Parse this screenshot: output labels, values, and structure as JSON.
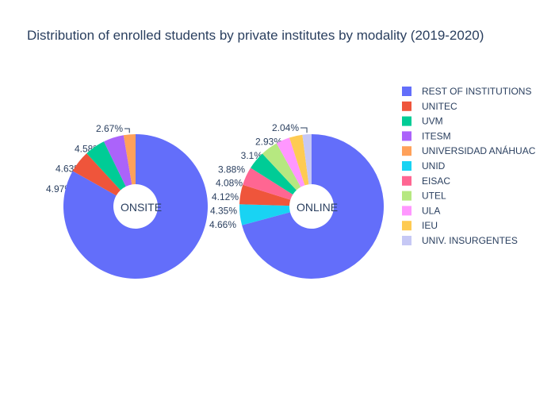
{
  "chart_data": {
    "type": "pie",
    "title": "Distribution of enrolled students by private institutes by modality (2019-2020)",
    "categories": [
      "REST OF INSTITUTIONS",
      "UNITEC",
      "UVM",
      "ITESM",
      "UNIVERSIDAD ANÁHUAC",
      "UNID",
      "EISAC",
      "UTEL",
      "ULA",
      "IEU",
      "UNIV. INSURGENTES"
    ],
    "colors": [
      "#636efa",
      "#EF553B",
      "#00cc96",
      "#ab63fa",
      "#FFA15A",
      "#19d3f3",
      "#FF6692",
      "#B6E880",
      "#FF97FF",
      "#FECB52",
      "#c6c8f5"
    ],
    "series": [
      {
        "name": "ONSITE",
        "slices": [
          {
            "label": "REST OF INSTITUTIONS",
            "value": 83.2,
            "text": "83.2%"
          },
          {
            "label": "UNITEC",
            "value": 4.97,
            "text": "4.97%"
          },
          {
            "label": "UVM",
            "value": 4.63,
            "text": "4.63%"
          },
          {
            "label": "ITESM",
            "value": 4.58,
            "text": "4.58%"
          },
          {
            "label": "UNIVERSIDAD ANÁHUAC",
            "value": 2.67,
            "text": "2.67%"
          }
        ]
      },
      {
        "name": "ONLINE",
        "slices": [
          {
            "label": "REST OF INSTITUTIONS",
            "value": 70.8,
            "text": "70.8%"
          },
          {
            "label": "UNID",
            "value": 4.66,
            "text": "4.66%"
          },
          {
            "label": "UNITEC",
            "value": 4.35,
            "text": "4.35%"
          },
          {
            "label": "EISAC",
            "value": 4.12,
            "text": "4.12%"
          },
          {
            "label": "UVM",
            "value": 4.08,
            "text": "4.08%"
          },
          {
            "label": "UTEL",
            "value": 3.88,
            "text": "3.88%"
          },
          {
            "label": "ULA",
            "value": 3.1,
            "text": "3.1%"
          },
          {
            "label": "IEU",
            "value": 2.93,
            "text": "2.93%"
          },
          {
            "label": "UNIV. INSURGENTES",
            "value": 2.04,
            "text": "2.04%"
          }
        ]
      }
    ],
    "legend_position": "right"
  }
}
